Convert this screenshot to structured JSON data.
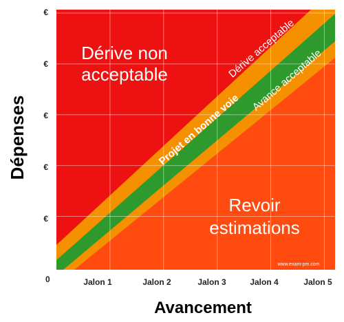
{
  "chart_data": {
    "type": "area",
    "xlabel": "Avancement",
    "ylabel": "Dépenses",
    "x_ticks": [
      "Jalon 1",
      "Jalon 2",
      "Jalon 3",
      "Jalon 4",
      "Jalon 5"
    ],
    "y_ticks": [
      "€",
      "€",
      "€",
      "€",
      "€"
    ],
    "origin_label": "0",
    "grid": true,
    "zones": [
      {
        "label_lines": [
          "Dérive non",
          "acceptable"
        ],
        "color": "#ee1111"
      },
      {
        "label_lines": [
          "Revoir",
          "estimations"
        ],
        "color": "#ff4a10"
      }
    ],
    "bands": [
      {
        "label": "Dérive acceptable",
        "color": "#f59000"
      },
      {
        "label": "Projet en bonne voie",
        "color": "#2e9a2e"
      },
      {
        "label": "Avance acceptable",
        "color": "#f59000"
      }
    ],
    "credit": "www.exam-pm.com"
  }
}
